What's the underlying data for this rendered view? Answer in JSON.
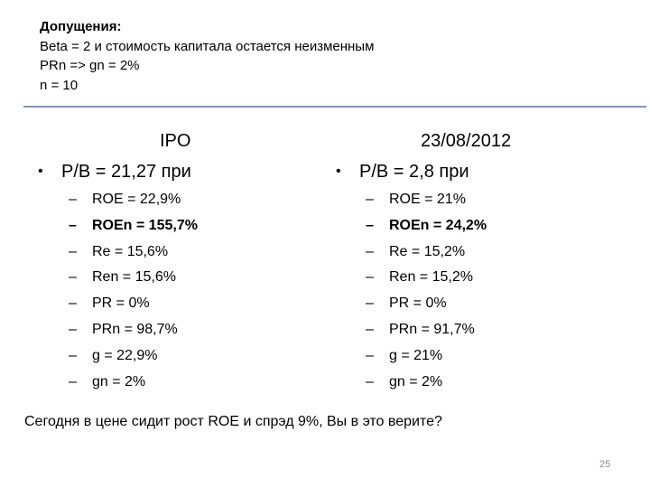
{
  "assumptions": {
    "heading": "Допущения:",
    "lines": [
      "Beta = 2 и стоимость капитала остается неизменным",
      "PRn => gn = 2%",
      "n = 10"
    ]
  },
  "left_column": {
    "title": "IPO",
    "bullet": "P/B = 21,27 при",
    "items": [
      "ROE = 22,9%",
      "ROEn = 155,7%",
      "Re = 15,6%",
      "Ren = 15,6%",
      "PR = 0%",
      "PRn = 98,7%",
      "g = 22,9%",
      "gn = 2%"
    ]
  },
  "right_column": {
    "title": "23/08/2012",
    "bullet": "P/B = 2,8 при",
    "items": [
      "ROE = 21%",
      "ROEn = 24,2%",
      "Re = 15,2%",
      "Ren = 15,2%",
      "PR = 0%",
      "PRn = 91,7%",
      "g = 21%",
      "gn = 2%"
    ]
  },
  "bullet_glyph": "•",
  "dash_glyph": "–",
  "conclusion": "Сегодня в цене сидит рост ROE и спрэд 9%, Вы в это верите?",
  "page_number": "25",
  "colors": {
    "divider": "#7f96b2",
    "page_number": "#8a8a8a"
  }
}
